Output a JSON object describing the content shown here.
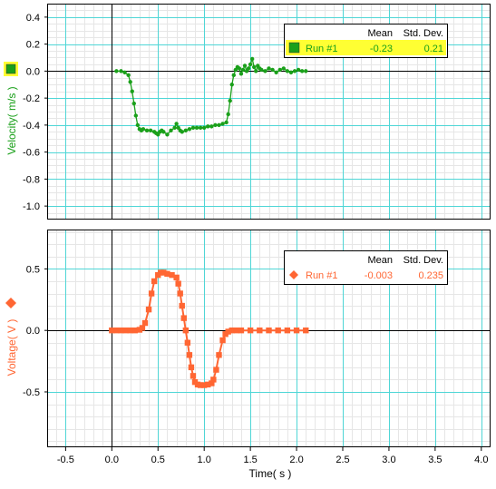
{
  "colors": {
    "velocity": "#1aa01a",
    "voltage": "#ff6633",
    "grid_major": "#4fd6d6",
    "grid_minor": "#e6e6e6",
    "legend_highlight": "#ffff33"
  },
  "chart_data": [
    {
      "type": "line",
      "ylabel": "Velocity( m/s )",
      "xlabel": "",
      "xlim": [
        -0.7,
        4.1
      ],
      "ylim": [
        -1.1,
        0.5
      ],
      "xticks": [
        -0.5,
        0.0,
        0.5,
        1.0,
        1.5,
        2.0,
        2.5,
        3.0,
        3.5,
        4.0
      ],
      "yticks": [
        0.4,
        0.2,
        0.0,
        -0.2,
        -0.4,
        -0.6,
        -0.8,
        -1.0
      ],
      "ytick_labels": [
        "0.4",
        "0.2",
        "0.0",
        "-0.2",
        "-0.4",
        "-0.6",
        "-0.8",
        "-1.0"
      ],
      "grid": true,
      "legend": {
        "placement": "top-right",
        "header_mean": "Mean",
        "header_std": "Std. Dev.",
        "highlighted": true
      },
      "series": [
        {
          "name": "Run #1",
          "mean": "-0.23",
          "std": "0.21",
          "marker": "circle",
          "x": [
            0.05,
            0.1,
            0.14,
            0.18,
            0.2,
            0.22,
            0.24,
            0.26,
            0.28,
            0.3,
            0.32,
            0.34,
            0.38,
            0.42,
            0.46,
            0.48,
            0.5,
            0.52,
            0.54,
            0.56,
            0.6,
            0.64,
            0.68,
            0.7,
            0.72,
            0.74,
            0.76,
            0.8,
            0.84,
            0.88,
            0.92,
            0.96,
            1.0,
            1.04,
            1.08,
            1.12,
            1.16,
            1.2,
            1.24,
            1.26,
            1.28,
            1.3,
            1.32,
            1.34,
            1.36,
            1.38,
            1.4,
            1.42,
            1.44,
            1.46,
            1.48,
            1.5,
            1.52,
            1.54,
            1.56,
            1.58,
            1.6,
            1.62,
            1.66,
            1.7,
            1.74,
            1.78,
            1.82,
            1.86,
            1.9,
            1.94,
            1.98,
            2.02,
            2.06,
            2.1
          ],
          "y": [
            0.0,
            0.0,
            -0.01,
            -0.03,
            -0.08,
            -0.15,
            -0.24,
            -0.33,
            -0.4,
            -0.43,
            -0.44,
            -0.43,
            -0.44,
            -0.44,
            -0.45,
            -0.46,
            -0.47,
            -0.45,
            -0.44,
            -0.45,
            -0.47,
            -0.44,
            -0.42,
            -0.39,
            -0.42,
            -0.44,
            -0.45,
            -0.44,
            -0.43,
            -0.42,
            -0.42,
            -0.42,
            -0.42,
            -0.41,
            -0.41,
            -0.4,
            -0.4,
            -0.39,
            -0.38,
            -0.32,
            -0.22,
            -0.1,
            -0.03,
            0.01,
            0.03,
            0.02,
            -0.02,
            0.01,
            0.04,
            0.0,
            0.02,
            0.05,
            0.09,
            0.03,
            0.0,
            0.04,
            0.02,
            0.01,
            0.0,
            0.02,
            0.01,
            -0.01,
            0.01,
            0.02,
            0.0,
            -0.01,
            0.0,
            0.01,
            0.0,
            0.0
          ]
        }
      ]
    },
    {
      "type": "line",
      "ylabel": "Voltage( V )",
      "xlabel": "Time( s )",
      "xlim": [
        -0.7,
        4.1
      ],
      "ylim": [
        -0.95,
        0.82
      ],
      "xticks": [
        -0.5,
        0.0,
        0.5,
        1.0,
        1.5,
        2.0,
        2.5,
        3.0,
        3.5,
        4.0
      ],
      "xtick_labels": [
        "-0.5",
        "0.0",
        "0.5",
        "1.0",
        "1.5",
        "2.0",
        "2.5",
        "3.0",
        "3.5",
        "4.0"
      ],
      "yticks": [
        0.5,
        0.0,
        -0.5
      ],
      "ytick_labels": [
        "0.5",
        "0.0",
        "-0.5"
      ],
      "grid": true,
      "legend": {
        "placement": "top-right",
        "header_mean": "Mean",
        "header_std": "Std. Dev.",
        "highlighted": false
      },
      "series": [
        {
          "name": "Run #1",
          "mean": "-0.003",
          "std": "0.235",
          "marker": "diamond",
          "x": [
            0.0,
            0.05,
            0.1,
            0.15,
            0.2,
            0.25,
            0.3,
            0.33,
            0.36,
            0.4,
            0.43,
            0.46,
            0.5,
            0.53,
            0.56,
            0.6,
            0.65,
            0.7,
            0.72,
            0.74,
            0.76,
            0.78,
            0.8,
            0.82,
            0.84,
            0.86,
            0.88,
            0.9,
            0.93,
            0.96,
            1.0,
            1.04,
            1.08,
            1.1,
            1.13,
            1.16,
            1.2,
            1.23,
            1.26,
            1.3,
            1.35,
            1.4,
            1.5,
            1.6,
            1.7,
            1.8,
            1.9,
            2.0,
            2.1
          ],
          "y": [
            0.0,
            0.0,
            0.0,
            0.0,
            0.0,
            0.0,
            0.005,
            0.02,
            0.06,
            0.17,
            0.3,
            0.4,
            0.45,
            0.47,
            0.47,
            0.46,
            0.45,
            0.43,
            0.38,
            0.3,
            0.2,
            0.1,
            0.0,
            -0.1,
            -0.2,
            -0.3,
            -0.37,
            -0.42,
            -0.44,
            -0.445,
            -0.445,
            -0.44,
            -0.43,
            -0.4,
            -0.32,
            -0.2,
            -0.08,
            -0.03,
            -0.01,
            0.0,
            0.0,
            0.0,
            0.0,
            0.0,
            0.0,
            0.0,
            0.0,
            0.0,
            0.0
          ]
        }
      ]
    }
  ]
}
